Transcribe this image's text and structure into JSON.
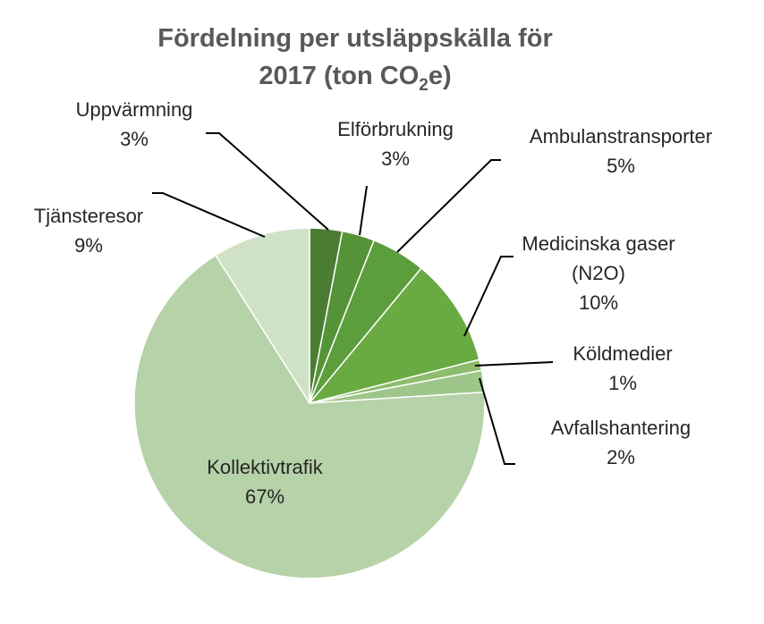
{
  "chart_data": {
    "type": "pie",
    "title_line1": "Fördelning per utsläppskälla för",
    "title_line2_pre": "2017 (ton CO",
    "title_line2_sub": "2",
    "title_line2_post": "e)",
    "slices": [
      {
        "label": "Uppvärmning",
        "value": 3,
        "pct": "3%",
        "color": "#4a7d33"
      },
      {
        "label": "Elförbrukning",
        "value": 3,
        "pct": "3%",
        "color": "#559338"
      },
      {
        "label": "Ambulanstransporter",
        "value": 5,
        "pct": "5%",
        "color": "#5c9e3c"
      },
      {
        "label": "Medicinska gaser (N2O)",
        "label_lines": [
          "Medicinska gaser",
          "(N2O)"
        ],
        "value": 10,
        "pct": "10%",
        "color": "#6aaa42"
      },
      {
        "label": "Köldmedier",
        "value": 1,
        "pct": "1%",
        "color": "#8dbd6c"
      },
      {
        "label": "Avfallshantering",
        "value": 2,
        "pct": "2%",
        "color": "#9fc68a"
      },
      {
        "label": "Kollektivtrafik",
        "value": 67,
        "pct": "67%",
        "color": "#b6d2a8"
      },
      {
        "label": "Tjänsteresor",
        "value": 9,
        "pct": "9%",
        "color": "#d0e2c6"
      }
    ]
  }
}
